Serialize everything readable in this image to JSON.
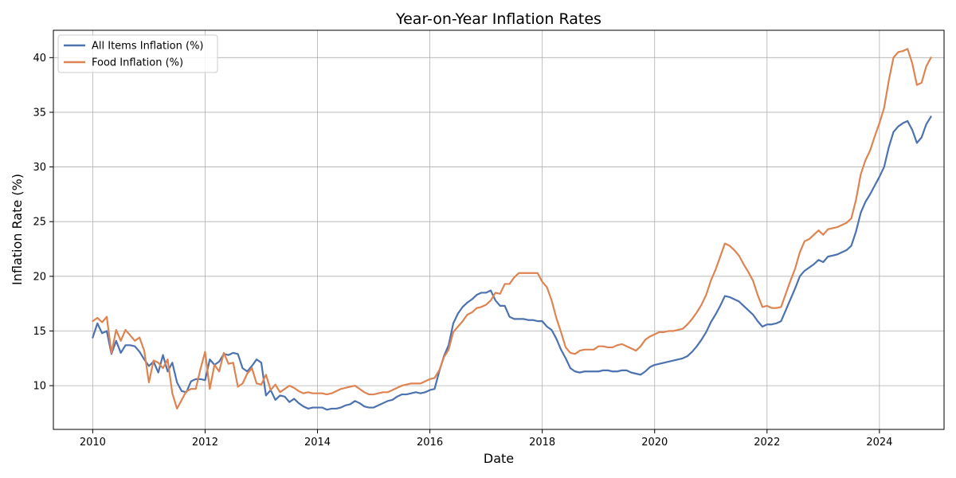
{
  "chart_data": {
    "type": "line",
    "title": "Year-on-Year Inflation Rates",
    "xlabel": "Date",
    "ylabel": "Inflation Rate (%)",
    "xlim": [
      2009.3,
      2025.15
    ],
    "ylim": [
      6.0,
      42.5
    ],
    "x_ticks": [
      2010,
      2012,
      2014,
      2016,
      2018,
      2020,
      2022,
      2024
    ],
    "y_ticks": [
      10,
      15,
      20,
      25,
      30,
      35,
      40
    ],
    "grid": true,
    "legend_position": "top-left",
    "colors": {
      "all_items": "#4c72b0",
      "food": "#dd8452"
    },
    "x_start": "2010-01",
    "x_step": "monthly",
    "series": [
      {
        "name": "All Items Inflation (%)",
        "color": "#4c72b0",
        "values": [
          14.4,
          15.7,
          14.8,
          15.0,
          12.9,
          14.1,
          13.0,
          13.7,
          13.7,
          13.6,
          13.1,
          12.4,
          11.8,
          12.2,
          11.2,
          12.8,
          11.3,
          12.1,
          10.3,
          9.5,
          9.4,
          10.4,
          10.6,
          10.6,
          10.5,
          12.4,
          11.9,
          12.2,
          12.9,
          12.8,
          13.0,
          12.9,
          11.6,
          11.3,
          11.8,
          12.4,
          12.1,
          9.1,
          9.6,
          8.7,
          9.1,
          9.0,
          8.5,
          8.8,
          8.4,
          8.1,
          7.9,
          8.0,
          8.0,
          8.0,
          7.8,
          7.9,
          7.9,
          8.0,
          8.2,
          8.3,
          8.6,
          8.4,
          8.1,
          8.0,
          8.0,
          8.2,
          8.4,
          8.6,
          8.7,
          9.0,
          9.2,
          9.2,
          9.3,
          9.4,
          9.3,
          9.4,
          9.6,
          9.7,
          11.3,
          12.7,
          13.7,
          15.7,
          16.6,
          17.2,
          17.6,
          17.9,
          18.3,
          18.5,
          18.5,
          18.7,
          17.8,
          17.3,
          17.3,
          16.3,
          16.1,
          16.1,
          16.1,
          16.0,
          16.0,
          15.9,
          15.9,
          15.4,
          15.1,
          14.3,
          13.3,
          12.5,
          11.6,
          11.3,
          11.2,
          11.3,
          11.3,
          11.3,
          11.3,
          11.4,
          11.4,
          11.3,
          11.3,
          11.4,
          11.4,
          11.2,
          11.1,
          11.0,
          11.3,
          11.7,
          11.9,
          12.0,
          12.1,
          12.2,
          12.3,
          12.4,
          12.5,
          12.7,
          13.1,
          13.6,
          14.2,
          14.9,
          15.8,
          16.5,
          17.3,
          18.2,
          18.1,
          17.9,
          17.7,
          17.3,
          16.9,
          16.5,
          15.9,
          15.4,
          15.6,
          15.6,
          15.7,
          15.9,
          16.9,
          17.9,
          18.9,
          20.0,
          20.5,
          20.8,
          21.1,
          21.5,
          21.3,
          21.8,
          21.9,
          22.0,
          22.2,
          22.4,
          22.8,
          24.1,
          25.8,
          26.8,
          27.5,
          28.3,
          29.1,
          30.0,
          31.8,
          33.2,
          33.7,
          34.0,
          34.2,
          33.4,
          32.2,
          32.7,
          33.9,
          34.6
        ]
      },
      {
        "name": "Food Inflation (%)",
        "color": "#dd8452",
        "values": [
          15.9,
          16.2,
          15.8,
          16.3,
          13.0,
          15.1,
          14.1,
          15.1,
          14.6,
          14.1,
          14.4,
          13.2,
          10.3,
          12.3,
          12.1,
          11.6,
          12.4,
          9.3,
          7.9,
          8.7,
          9.5,
          9.7,
          9.7,
          11.5,
          13.1,
          9.7,
          11.9,
          11.3,
          13.0,
          12.0,
          12.1,
          9.9,
          10.2,
          11.1,
          11.6,
          10.2,
          10.1,
          11.0,
          9.6,
          10.1,
          9.4,
          9.7,
          10.0,
          9.8,
          9.5,
          9.3,
          9.4,
          9.3,
          9.3,
          9.3,
          9.2,
          9.3,
          9.5,
          9.7,
          9.8,
          9.9,
          10.0,
          9.7,
          9.4,
          9.2,
          9.2,
          9.3,
          9.4,
          9.4,
          9.6,
          9.8,
          10.0,
          10.1,
          10.2,
          10.2,
          10.2,
          10.4,
          10.6,
          10.7,
          11.4,
          12.6,
          13.3,
          14.9,
          15.4,
          15.9,
          16.5,
          16.7,
          17.1,
          17.2,
          17.4,
          17.8,
          18.5,
          18.4,
          19.3,
          19.3,
          19.9,
          20.3,
          20.3,
          20.3,
          20.3,
          20.3,
          19.5,
          19.0,
          17.8,
          16.2,
          14.9,
          13.5,
          13.0,
          12.9,
          13.2,
          13.3,
          13.3,
          13.3,
          13.6,
          13.6,
          13.5,
          13.5,
          13.7,
          13.8,
          13.6,
          13.4,
          13.2,
          13.6,
          14.2,
          14.5,
          14.7,
          14.9,
          14.9,
          15.0,
          15.0,
          15.1,
          15.2,
          15.6,
          16.1,
          16.7,
          17.4,
          18.3,
          19.6,
          20.6,
          21.8,
          23.0,
          22.8,
          22.4,
          21.9,
          21.1,
          20.4,
          19.6,
          18.3,
          17.2,
          17.3,
          17.1,
          17.1,
          17.2,
          18.4,
          19.6,
          20.7,
          22.2,
          23.2,
          23.4,
          23.8,
          24.2,
          23.8,
          24.3,
          24.4,
          24.5,
          24.7,
          24.9,
          25.3,
          27.0,
          29.3,
          30.6,
          31.5,
          32.8,
          34.0,
          35.4,
          37.9,
          40.0,
          40.5,
          40.6,
          40.8,
          39.5,
          37.5,
          37.7,
          39.2,
          40.0
        ]
      }
    ]
  }
}
